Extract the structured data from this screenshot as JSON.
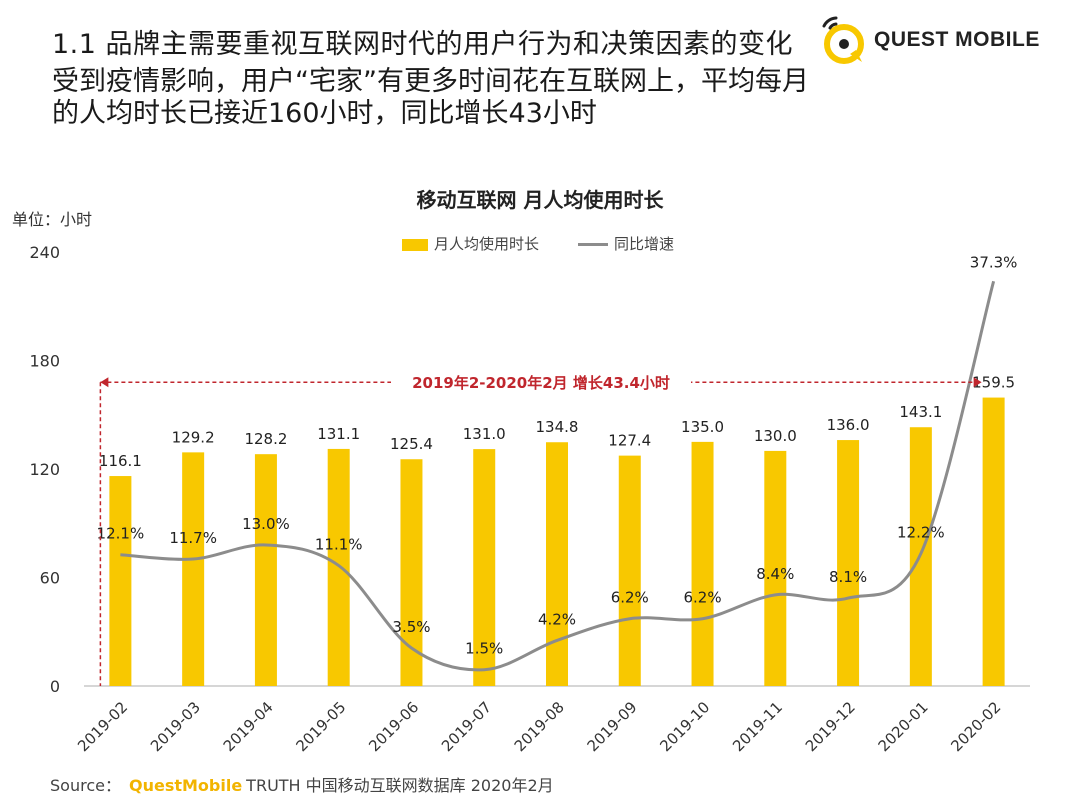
{
  "header": {
    "heading": "1.1 品牌主需要重视互联网时代的用户行为和决策因素的变化",
    "subtitle": "受到疫情影响，用户“宅家”有更多时间花在互联网上，平均每月的人均时长已接近160小时，同比增长43小时"
  },
  "logo": {
    "text": "QUEST MOBILE"
  },
  "footer": {
    "source_label": "Source：",
    "source_brand": "QuestMobile",
    "source_rest": "TRUTH 中国移动互联网数据库 2020年2月"
  },
  "chart_data": {
    "type": "bar",
    "title": "移动互联网 月人均使用时长",
    "unit_label": "单位：小时",
    "categories": [
      "2019-02",
      "2019-03",
      "2019-04",
      "2019-05",
      "2019-06",
      "2019-07",
      "2019-08",
      "2019-09",
      "2019-10",
      "2019-11",
      "2019-12",
      "2020-01",
      "2020-02"
    ],
    "series": [
      {
        "name": "月人均使用时长",
        "type": "bar",
        "color": "#f8c800",
        "values": [
          116.1,
          129.2,
          128.2,
          131.1,
          125.4,
          131.0,
          134.8,
          127.4,
          135.0,
          130.0,
          136.0,
          143.1,
          159.5
        ],
        "labels": [
          "116.1",
          "129.2",
          "128.2",
          "131.1",
          "125.4",
          "131.0",
          "134.8",
          "127.4",
          "135.0",
          "130.0",
          "136.0",
          "143.1",
          "159.5"
        ]
      },
      {
        "name": "同比增速",
        "type": "line",
        "color": "#8c8c8c",
        "values": [
          12.1,
          11.7,
          13.0,
          11.1,
          3.5,
          1.5,
          4.2,
          6.2,
          6.2,
          8.4,
          8.1,
          12.2,
          37.3
        ],
        "labels": [
          "12.1%",
          "11.7%",
          "13.0%",
          "11.1%",
          "3.5%",
          "1.5%",
          "4.2%",
          "6.2%",
          "6.2%",
          "8.4%",
          "8.1%",
          "12.2%",
          "37.3%"
        ]
      }
    ],
    "y_ticks": [
      "0",
      "60",
      "120",
      "180",
      "240"
    ],
    "ylim": [
      0,
      240
    ],
    "annotation": {
      "text": "2019年2-2020年2月 增长43.4小时",
      "color": "#c0262d",
      "level": 168
    },
    "legend_position": "top-center",
    "grid": false
  }
}
